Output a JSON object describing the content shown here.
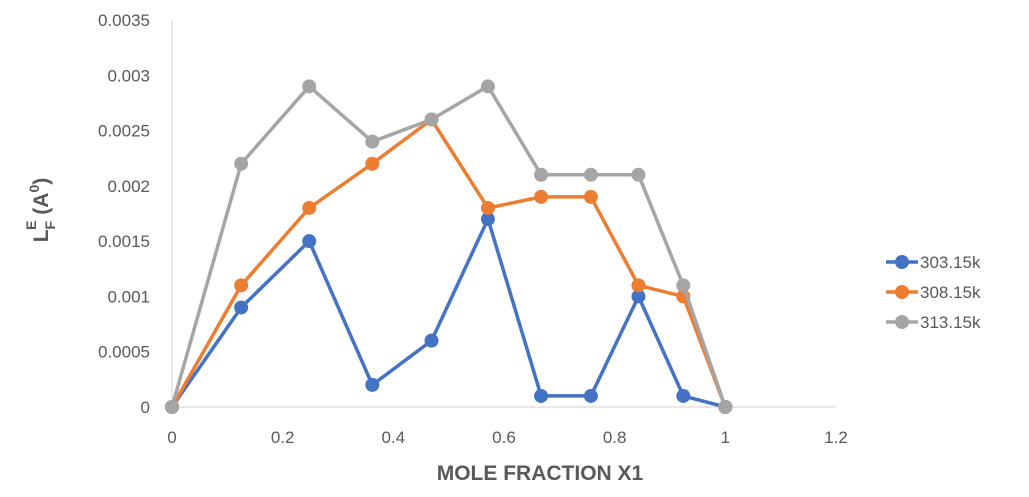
{
  "chart_data": {
    "type": "line",
    "title": "",
    "xlabel": "MOLE FRACTION X1",
    "ylabel": {
      "main": "L",
      "main_sub": "F",
      "main_sup": "E",
      "paren_open": " (A",
      "paren_sup": "0",
      "paren_close": ")"
    },
    "xlim": [
      0,
      1.2
    ],
    "ylim": [
      0,
      0.0035
    ],
    "x_ticks": [
      0,
      0.2,
      0.4,
      0.6,
      0.8,
      1,
      1.2
    ],
    "y_ticks": [
      0,
      0.0005,
      0.001,
      0.0015,
      0.002,
      0.0025,
      0.003,
      0.0035
    ],
    "x_tick_labels": [
      "0",
      "0.2",
      "0.4",
      "0.6",
      "0.8",
      "1",
      "1.2"
    ],
    "y_tick_labels": [
      "0",
      "0.0005",
      "0.001",
      "0.0015",
      "0.002",
      "0.0025",
      "0.003",
      "0.0035"
    ],
    "grid": false,
    "legend_position": "right",
    "series": [
      {
        "name": "303.15k",
        "color": "#4472C4",
        "x": [
          0,
          0.125,
          0.248,
          0.362,
          0.469,
          0.571,
          0.667,
          0.757,
          0.843,
          0.924,
          1
        ],
        "y": [
          0,
          0.0009,
          0.0015,
          0.0002,
          0.0006,
          0.0017,
          0.0001,
          0.0001,
          0.001,
          0.0001,
          0
        ]
      },
      {
        "name": "308.15k",
        "color": "#ED7D31",
        "x": [
          0,
          0.125,
          0.248,
          0.362,
          0.469,
          0.571,
          0.667,
          0.757,
          0.843,
          0.924,
          1
        ],
        "y": [
          0,
          0.0011,
          0.0018,
          0.0022,
          0.0026,
          0.0018,
          0.0019,
          0.0019,
          0.0011,
          0.001,
          0
        ]
      },
      {
        "name": "313.15k",
        "color": "#A5A5A5",
        "x": [
          0,
          0.125,
          0.248,
          0.362,
          0.469,
          0.571,
          0.667,
          0.757,
          0.843,
          0.924,
          1
        ],
        "y": [
          0,
          0.0022,
          0.0029,
          0.0024,
          0.0026,
          0.0029,
          0.0021,
          0.0021,
          0.0021,
          0.0011,
          0
        ]
      }
    ]
  }
}
